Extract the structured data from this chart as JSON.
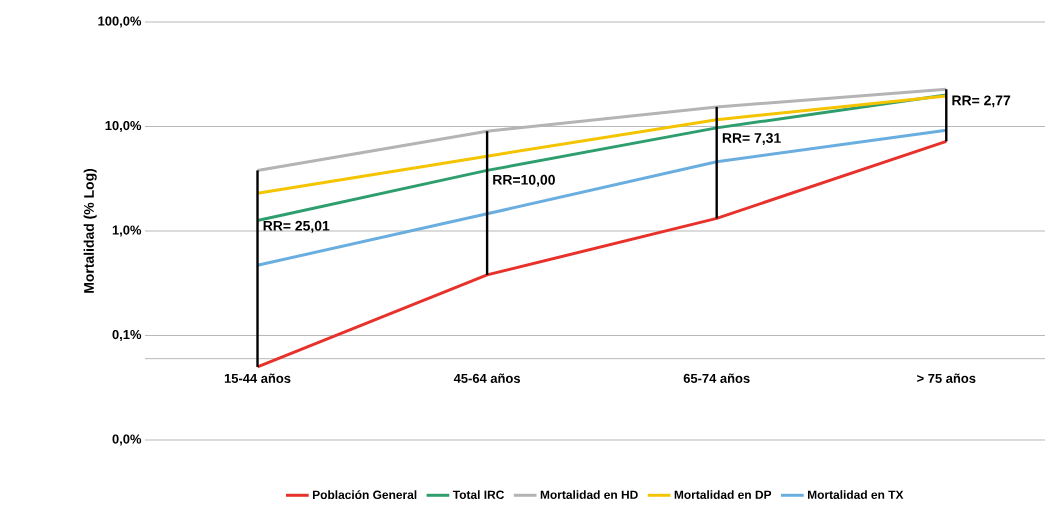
{
  "chart_data": {
    "type": "line",
    "ylabel": "Mortalidad (% Log)",
    "categories": [
      "15-44 años",
      "45-64 años",
      "65-74 años",
      "> 75 años"
    ],
    "series": [
      {
        "name": "Población General",
        "color": "#e8312a",
        "values": [
          0.05,
          0.38,
          1.32,
          7.2
        ],
        "errors": [
          [
            0.05,
            3.8
          ],
          [
            0.38,
            9.0
          ],
          [
            1.32,
            15.4
          ],
          [
            7.2,
            22.7
          ]
        ]
      },
      {
        "name": "Total IRC",
        "color": "#2e9e6e",
        "values": [
          1.26,
          3.8,
          9.7,
          20
        ]
      },
      {
        "name": "Mortalidad en HD",
        "color": "#b4b4b4",
        "values": [
          3.8,
          9.0,
          15.4,
          22.7
        ]
      },
      {
        "name": "Mortalidad en DP",
        "color": "#f5c400",
        "values": [
          2.3,
          5.2,
          11.6,
          19.6
        ]
      },
      {
        "name": "Mortalidad en TX",
        "color": "#6aaee0",
        "values": [
          0.47,
          1.46,
          4.6,
          9.2
        ]
      }
    ],
    "log": "y",
    "ylim": [
      0.01,
      100
    ],
    "yticks": [
      {
        "value": 0.01,
        "label": "0,0%"
      },
      {
        "value": 0.1,
        "label": "0,1%"
      },
      {
        "value": 1,
        "label": "1,0%"
      },
      {
        "value": 10,
        "label": "10,0%"
      },
      {
        "value": 100,
        "label": "100,0%"
      }
    ],
    "grid": "y",
    "ref_lines": [
      {
        "axis": "y",
        "value": 0.06,
        "color": "#a6a6a6"
      }
    ],
    "annotations": [
      "RR= 25,01",
      "RR=10,00",
      "RR= 7,31",
      "RR= 2,77"
    ],
    "legend": "bottom",
    "marker": "none",
    "line_style": "solid"
  }
}
